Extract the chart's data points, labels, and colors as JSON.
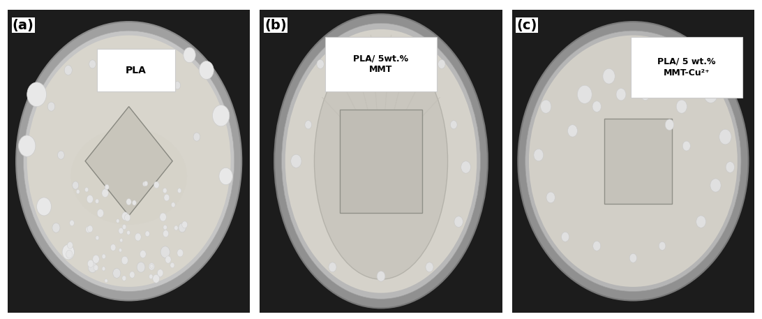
{
  "figure_width": 10.92,
  "figure_height": 4.57,
  "dpi": 100,
  "background_color": "#ffffff",
  "panels": [
    "(a)",
    "(b)",
    "(c)"
  ],
  "panel_font_size": 14,
  "label_font_size": 11,
  "dark_bg": "#1c1c1c",
  "plate_outer_a": "#a0a0a0",
  "plate_inner_a": "#c5c5c5",
  "agar_a": "#d8d5cc",
  "plate_outer_b": "#909090",
  "plate_inner_b": "#b8b8b8",
  "agar_b": "#d5d2ca",
  "plate_outer_c": "#909090",
  "plate_inner_c": "#b5b5b5",
  "agar_c": "#d2cfc7",
  "colony_large": "#e8e8e8",
  "colony_medium": "#e0e0e0",
  "colony_small": "#e5e5e5",
  "sample_a": "#c8c5bb",
  "sample_b": "#c0bdb5",
  "sample_c": "#c5c2ba",
  "growth_mass_b": "#c8c5bc",
  "label_a": "PLA",
  "label_b": "PLA/ 5wt.%\nMMT",
  "label_c": "PLA/ 5 wt.%\nMMT-Cu²⁺"
}
